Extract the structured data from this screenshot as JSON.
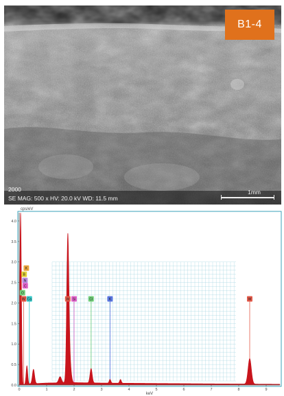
{
  "figure": {
    "sem": {
      "badge": "B1-4",
      "scalebar_label": "1mm",
      "corner_label": "2000",
      "info_line": "SE  MAG: 500 x  HV: 20.0 kV  WD: 11.5 mm"
    },
    "spectrum": {
      "unit_label": "cps/eV",
      "xlabel": "keV"
    }
  },
  "chart_data": {
    "type": "line",
    "xlim": [
      0,
      9.5
    ],
    "ylim": [
      0,
      4.2
    ],
    "yticks": [
      0,
      0.5,
      1.0,
      1.5,
      2.0,
      2.5,
      3.0,
      3.5,
      4.0
    ],
    "ytick_labels": [
      "0.0",
      "0.5",
      "1.0",
      "1.5",
      "2.0",
      "2.5",
      "3.0",
      "3.5",
      "4.0"
    ],
    "xticks": [
      0,
      1,
      2,
      3,
      4,
      5,
      6,
      7,
      8,
      9
    ],
    "xtick_labels": [
      "0",
      "1",
      "2",
      "3",
      "4",
      "5",
      "6",
      "7",
      "8",
      "9"
    ],
    "grid": true,
    "series_color": "#c8141c",
    "peaks": [
      {
        "x": 0.05,
        "y": 4.2,
        "w": 0.03
      },
      {
        "x": 0.28,
        "y": 0.45,
        "w": 0.03
      },
      {
        "x": 0.52,
        "y": 0.35,
        "w": 0.04
      },
      {
        "x": 1.49,
        "y": 0.15,
        "w": 0.05
      },
      {
        "x": 1.77,
        "y": 3.45,
        "w": 0.04
      },
      {
        "x": 1.84,
        "y": 0.5,
        "w": 0.05
      },
      {
        "x": 2.62,
        "y": 0.35,
        "w": 0.04
      },
      {
        "x": 3.31,
        "y": 0.09,
        "w": 0.03
      },
      {
        "x": 3.69,
        "y": 0.09,
        "w": 0.03
      },
      {
        "x": 8.4,
        "y": 0.62,
        "w": 0.06
      }
    ],
    "background": [
      [
        0.0,
        0.0
      ],
      [
        0.4,
        0.03
      ],
      [
        1.0,
        0.05
      ],
      [
        2.0,
        0.06
      ],
      [
        3.0,
        0.05
      ],
      [
        5.0,
        0.04
      ],
      [
        7.0,
        0.03
      ],
      [
        9.5,
        0.02
      ]
    ],
    "element_markers": [
      {
        "label": "K",
        "x": 0.26,
        "y_row": 2.85,
        "color": "#e8a43c",
        "line": false
      },
      {
        "label": "B",
        "x": 0.18,
        "y_row": 2.7,
        "color": "#e2d23a",
        "line": false
      },
      {
        "label": "N",
        "x": 0.21,
        "y_row": 2.55,
        "color": "#b98be0",
        "line": false
      },
      {
        "label": "C",
        "x": 0.22,
        "y_row": 2.42,
        "color": "#e062c9",
        "line": false
      },
      {
        "label": "O",
        "x": 0.12,
        "y_row": 2.25,
        "color": "#72d07a",
        "line": false
      },
      {
        "label": "W",
        "x": 0.16,
        "y_row": 2.1,
        "color": "#e45a4a",
        "line": true
      },
      {
        "label": "Ca",
        "x": 0.37,
        "y_row": 2.1,
        "color": "#36c9c9",
        "line": true
      },
      {
        "label": "W",
        "x": 1.77,
        "y_row": 2.1,
        "color": "#e45a4a",
        "line": true
      },
      {
        "label": "Si",
        "x": 2.0,
        "y_row": 2.1,
        "color": "#e062c9",
        "line": true
      },
      {
        "label": "Cl",
        "x": 2.62,
        "y_row": 2.1,
        "color": "#72d07a",
        "line": true
      },
      {
        "label": "K",
        "x": 3.31,
        "y_row": 2.1,
        "color": "#5a76e0",
        "line": true
      },
      {
        "label": "W",
        "x": 8.4,
        "y_row": 2.1,
        "color": "#e45a4a",
        "line": true
      }
    ]
  }
}
